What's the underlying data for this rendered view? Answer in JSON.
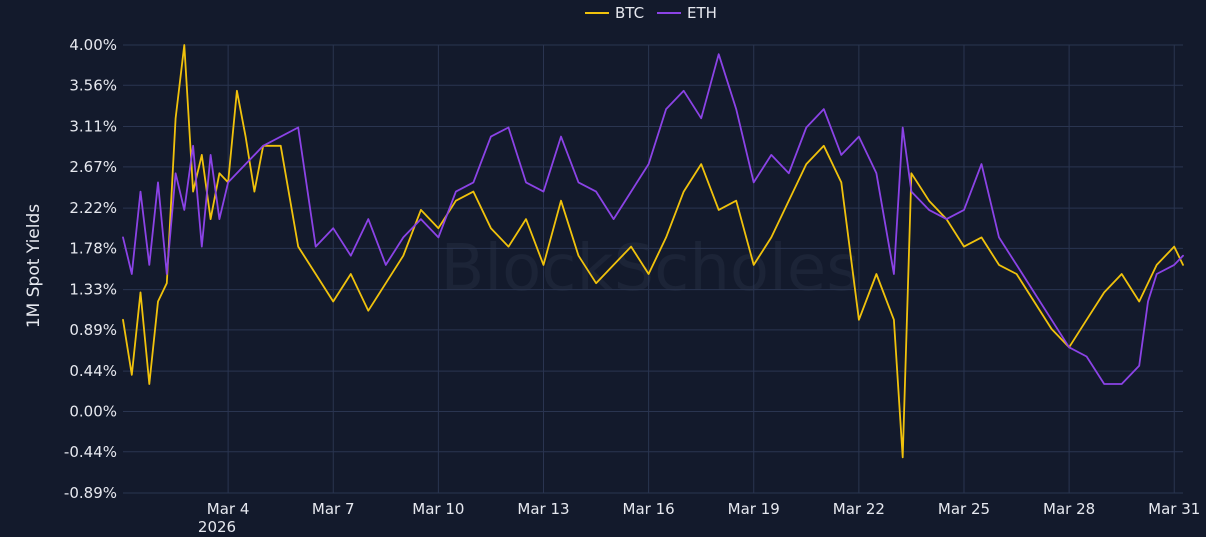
{
  "chart_data": {
    "type": "line",
    "title": "",
    "xlabel": "",
    "ylabel": "1M Spot Yields",
    "watermark": "BlockScholes",
    "x_range": [
      "2026-03-01",
      "2026-03-31T06:00"
    ],
    "y_range": [
      -0.89,
      4.0
    ],
    "y_ticks": [
      "4.00%",
      "3.56%",
      "3.11%",
      "2.67%",
      "2.22%",
      "1.78%",
      "1.33%",
      "0.89%",
      "0.44%",
      "0.00%",
      "-0.44%",
      "-0.89%"
    ],
    "y_tick_values": [
      4.0,
      3.56,
      3.11,
      2.67,
      2.22,
      1.78,
      1.33,
      0.89,
      0.44,
      0.0,
      -0.44,
      -0.89
    ],
    "x_ticks": [
      "Mar 4",
      "Mar 7",
      "Mar 10",
      "Mar 13",
      "Mar 16",
      "Mar 19",
      "Mar 22",
      "Mar 25",
      "Mar 28",
      "Mar 31"
    ],
    "x_tick_dates": [
      "2026-03-04",
      "2026-03-07",
      "2026-03-10",
      "2026-03-13",
      "2026-03-16",
      "2026-03-19",
      "2026-03-22",
      "2026-03-25",
      "2026-03-28",
      "2026-03-31"
    ],
    "x_year_label": "2026",
    "grid": true,
    "legend": "top-center",
    "series": [
      {
        "name": "BTC",
        "color": "#f0c20c",
        "x": [
          "2026-03-01T00:00",
          "2026-03-01T06:00",
          "2026-03-01T12:00",
          "2026-03-01T18:00",
          "2026-03-02T00:00",
          "2026-03-02T06:00",
          "2026-03-02T12:00",
          "2026-03-02T18:00",
          "2026-03-03T00:00",
          "2026-03-03T06:00",
          "2026-03-03T12:00",
          "2026-03-03T18:00",
          "2026-03-04T00:00",
          "2026-03-04T06:00",
          "2026-03-04T12:00",
          "2026-03-04T18:00",
          "2026-03-05T00:00",
          "2026-03-05T12:00",
          "2026-03-06T00:00",
          "2026-03-06T12:00",
          "2026-03-07T00:00",
          "2026-03-07T12:00",
          "2026-03-08T00:00",
          "2026-03-08T12:00",
          "2026-03-09T00:00",
          "2026-03-09T12:00",
          "2026-03-10T00:00",
          "2026-03-10T12:00",
          "2026-03-11T00:00",
          "2026-03-11T12:00",
          "2026-03-12T00:00",
          "2026-03-12T12:00",
          "2026-03-13T00:00",
          "2026-03-13T12:00",
          "2026-03-14T00:00",
          "2026-03-14T12:00",
          "2026-03-15T00:00",
          "2026-03-15T12:00",
          "2026-03-16T00:00",
          "2026-03-16T12:00",
          "2026-03-17T00:00",
          "2026-03-17T12:00",
          "2026-03-18T00:00",
          "2026-03-18T12:00",
          "2026-03-19T00:00",
          "2026-03-19T12:00",
          "2026-03-20T00:00",
          "2026-03-20T12:00",
          "2026-03-21T00:00",
          "2026-03-21T12:00",
          "2026-03-22T00:00",
          "2026-03-22T12:00",
          "2026-03-23T00:00",
          "2026-03-23T06:00",
          "2026-03-23T12:00",
          "2026-03-24T00:00",
          "2026-03-24T12:00",
          "2026-03-25T00:00",
          "2026-03-25T12:00",
          "2026-03-26T00:00",
          "2026-03-26T12:00",
          "2026-03-27T00:00",
          "2026-03-27T12:00",
          "2026-03-28T00:00",
          "2026-03-28T12:00",
          "2026-03-29T00:00",
          "2026-03-29T12:00",
          "2026-03-30T00:00",
          "2026-03-30T12:00",
          "2026-03-31T00:00",
          "2026-03-31T06:00"
        ],
        "values": [
          1.0,
          0.4,
          1.3,
          0.3,
          1.2,
          1.4,
          3.2,
          4.0,
          2.4,
          2.8,
          2.1,
          2.6,
          2.5,
          3.5,
          3.0,
          2.4,
          2.9,
          2.9,
          1.8,
          1.5,
          1.2,
          1.5,
          1.1,
          1.4,
          1.7,
          2.2,
          2.0,
          2.3,
          2.4,
          2.0,
          1.8,
          2.1,
          1.6,
          2.3,
          1.7,
          1.4,
          1.6,
          1.8,
          1.5,
          1.9,
          2.4,
          2.7,
          2.2,
          2.3,
          1.6,
          1.9,
          2.3,
          2.7,
          2.9,
          2.5,
          1.0,
          1.5,
          1.0,
          -0.5,
          2.6,
          2.3,
          2.1,
          1.8,
          1.9,
          1.6,
          1.5,
          1.2,
          0.9,
          0.7,
          1.0,
          1.3,
          1.5,
          1.2,
          1.6,
          1.8,
          1.6
        ]
      },
      {
        "name": "ETH",
        "color": "#8b43e6",
        "x": [
          "2026-03-01T00:00",
          "2026-03-01T06:00",
          "2026-03-01T12:00",
          "2026-03-01T18:00",
          "2026-03-02T00:00",
          "2026-03-02T06:00",
          "2026-03-02T12:00",
          "2026-03-02T18:00",
          "2026-03-03T00:00",
          "2026-03-03T06:00",
          "2026-03-03T12:00",
          "2026-03-03T18:00",
          "2026-03-04T00:00",
          "2026-03-05T00:00",
          "2026-03-06T00:00",
          "2026-03-06T12:00",
          "2026-03-07T00:00",
          "2026-03-07T12:00",
          "2026-03-08T00:00",
          "2026-03-08T12:00",
          "2026-03-09T00:00",
          "2026-03-09T12:00",
          "2026-03-10T00:00",
          "2026-03-10T12:00",
          "2026-03-11T00:00",
          "2026-03-11T12:00",
          "2026-03-12T00:00",
          "2026-03-12T12:00",
          "2026-03-13T00:00",
          "2026-03-13T12:00",
          "2026-03-14T00:00",
          "2026-03-14T12:00",
          "2026-03-15T00:00",
          "2026-03-15T12:00",
          "2026-03-16T00:00",
          "2026-03-16T12:00",
          "2026-03-17T00:00",
          "2026-03-17T12:00",
          "2026-03-18T00:00",
          "2026-03-18T12:00",
          "2026-03-19T00:00",
          "2026-03-19T12:00",
          "2026-03-20T00:00",
          "2026-03-20T12:00",
          "2026-03-21T00:00",
          "2026-03-21T12:00",
          "2026-03-22T00:00",
          "2026-03-22T12:00",
          "2026-03-23T00:00",
          "2026-03-23T06:00",
          "2026-03-23T12:00",
          "2026-03-24T00:00",
          "2026-03-24T12:00",
          "2026-03-25T00:00",
          "2026-03-25T12:00",
          "2026-03-26T00:00",
          "2026-03-26T12:00",
          "2026-03-27T00:00",
          "2026-03-27T12:00",
          "2026-03-28T00:00",
          "2026-03-28T12:00",
          "2026-03-29T00:00",
          "2026-03-29T12:00",
          "2026-03-30T00:00",
          "2026-03-30T06:00",
          "2026-03-30T12:00",
          "2026-03-31T00:00",
          "2026-03-31T06:00"
        ],
        "values": [
          1.9,
          1.5,
          2.4,
          1.6,
          2.5,
          1.5,
          2.6,
          2.2,
          2.9,
          1.8,
          2.8,
          2.1,
          2.5,
          2.9,
          3.1,
          1.8,
          2.0,
          1.7,
          2.1,
          1.6,
          1.9,
          2.1,
          1.9,
          2.4,
          2.5,
          3.0,
          3.1,
          2.5,
          2.4,
          3.0,
          2.5,
          2.4,
          2.1,
          2.4,
          2.7,
          3.3,
          3.5,
          3.2,
          3.9,
          3.3,
          2.5,
          2.8,
          2.6,
          3.1,
          3.3,
          2.8,
          3.0,
          2.6,
          1.5,
          3.1,
          2.4,
          2.2,
          2.1,
          2.2,
          2.7,
          1.9,
          1.6,
          1.3,
          1.0,
          0.7,
          0.6,
          0.3,
          0.3,
          0.5,
          1.2,
          1.5,
          1.6,
          1.7
        ]
      }
    ]
  }
}
